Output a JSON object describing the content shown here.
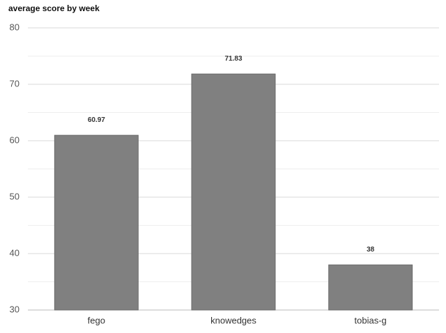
{
  "chart_data": {
    "type": "bar",
    "title": "average score by week",
    "categories": [
      "fego",
      "knowedges",
      "tobias-g"
    ],
    "values": [
      60.97,
      71.83,
      38
    ],
    "color": "#808080",
    "ylim": [
      30,
      80
    ],
    "yticks": [
      30,
      40,
      50,
      60,
      70,
      80
    ],
    "minor_yticks": [
      35,
      45,
      55,
      65,
      75
    ],
    "grid": true
  }
}
